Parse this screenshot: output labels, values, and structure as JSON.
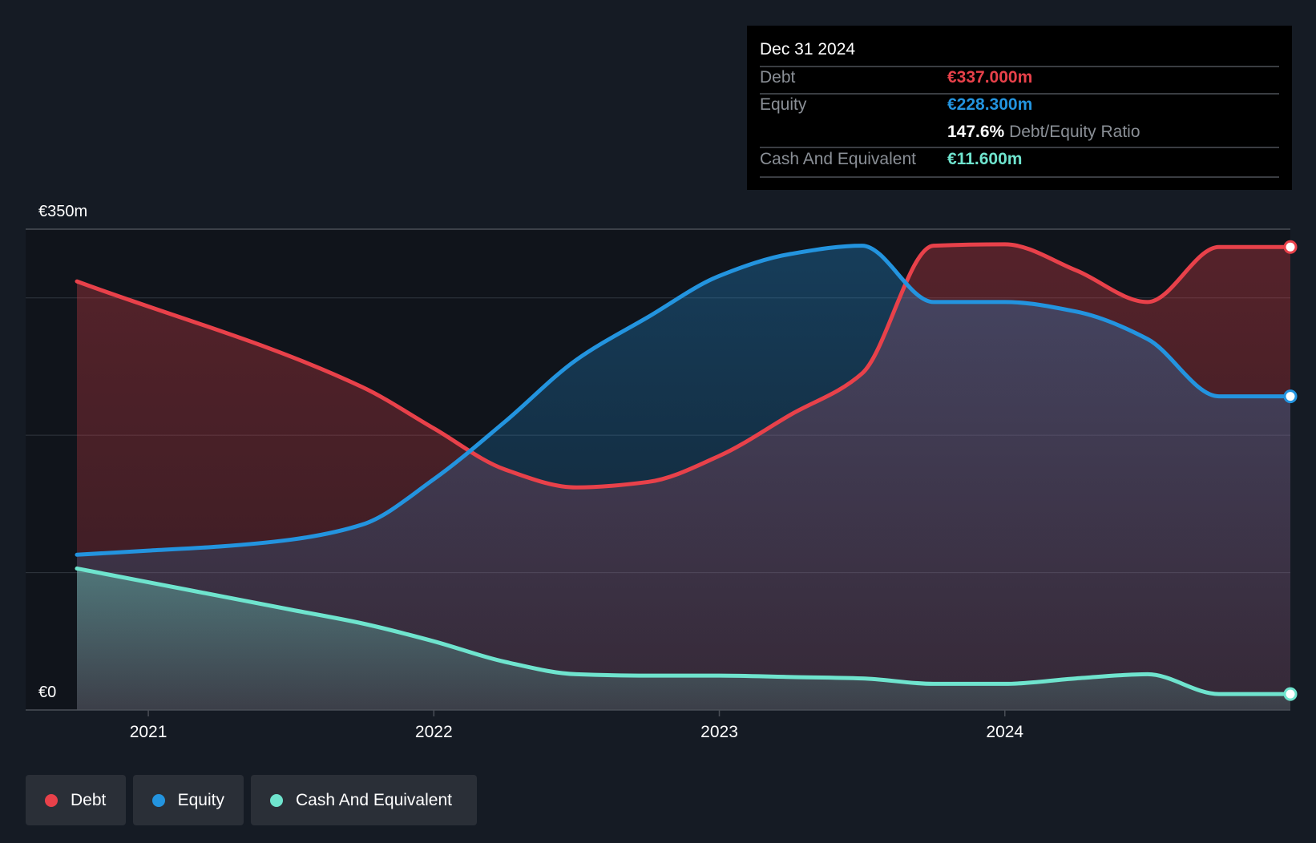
{
  "tooltip": {
    "date": "Dec 31 2024",
    "rows": [
      {
        "label": "Debt",
        "value": "€337.000m"
      },
      {
        "label": "Equity",
        "value": "€228.300m"
      },
      {
        "label": "Cash And Equivalent",
        "value": "€11.600m"
      }
    ],
    "ratio_value": "147.6%",
    "ratio_label": "Debt/Equity Ratio"
  },
  "legend": [
    {
      "label": "Debt",
      "color": "#e8414a"
    },
    {
      "label": "Equity",
      "color": "#2394df"
    },
    {
      "label": "Cash And Equivalent",
      "color": "#6fe4ce"
    }
  ],
  "colors": {
    "background": "#151b24",
    "debt": "#e8414a",
    "equity": "#2394df",
    "cash": "#6fe4ce",
    "grid": "#30363f",
    "axis_text": "#ffffff"
  },
  "chart_data": {
    "type": "area",
    "title": "",
    "xlabel": "",
    "ylabel": "",
    "y_axis_labels": {
      "top": "€350m",
      "bottom": "€0"
    },
    "x_ticks": [
      2021,
      2022,
      2023,
      2024
    ],
    "xlim": [
      2020.75,
      2025.0
    ],
    "ylim": [
      0,
      350
    ],
    "grid": true,
    "legend_position": "bottom-left",
    "series": [
      {
        "name": "Debt",
        "points": [
          [
            2020.75,
            312
          ],
          [
            2021.75,
            235
          ],
          [
            2022.0,
            205
          ],
          [
            2022.25,
            175
          ],
          [
            2022.5,
            162
          ],
          [
            2022.75,
            166
          ],
          [
            2023.0,
            185
          ],
          [
            2023.25,
            215
          ],
          [
            2023.5,
            245
          ],
          [
            2023.75,
            338
          ],
          [
            2024.0,
            339
          ],
          [
            2024.25,
            320
          ],
          [
            2024.5,
            297
          ],
          [
            2024.75,
            337
          ],
          [
            2025.0,
            337
          ]
        ]
      },
      {
        "name": "Equity",
        "points": [
          [
            2020.75,
            113
          ],
          [
            2021.0,
            116
          ],
          [
            2021.25,
            119
          ],
          [
            2021.5,
            124
          ],
          [
            2021.75,
            135
          ],
          [
            2022.0,
            168
          ],
          [
            2022.25,
            210
          ],
          [
            2022.5,
            255
          ],
          [
            2022.75,
            286
          ],
          [
            2023.0,
            316
          ],
          [
            2023.25,
            332
          ],
          [
            2023.5,
            338
          ],
          [
            2023.75,
            297
          ],
          [
            2024.0,
            297
          ],
          [
            2024.25,
            290
          ],
          [
            2024.5,
            270
          ],
          [
            2024.75,
            228.3
          ],
          [
            2025.0,
            228.3
          ]
        ]
      },
      {
        "name": "Cash And Equivalent",
        "points": [
          [
            2020.75,
            103
          ],
          [
            2021.0,
            93
          ],
          [
            2021.25,
            83
          ],
          [
            2021.5,
            73
          ],
          [
            2021.75,
            63
          ],
          [
            2022.0,
            50
          ],
          [
            2022.25,
            35
          ],
          [
            2022.5,
            26
          ],
          [
            2022.75,
            25
          ],
          [
            2023.0,
            25
          ],
          [
            2023.25,
            24
          ],
          [
            2023.5,
            23
          ],
          [
            2023.75,
            19
          ],
          [
            2024.0,
            19
          ],
          [
            2024.25,
            23
          ],
          [
            2024.5,
            26
          ],
          [
            2024.75,
            11.6
          ],
          [
            2025.0,
            11.6
          ]
        ]
      }
    ]
  }
}
